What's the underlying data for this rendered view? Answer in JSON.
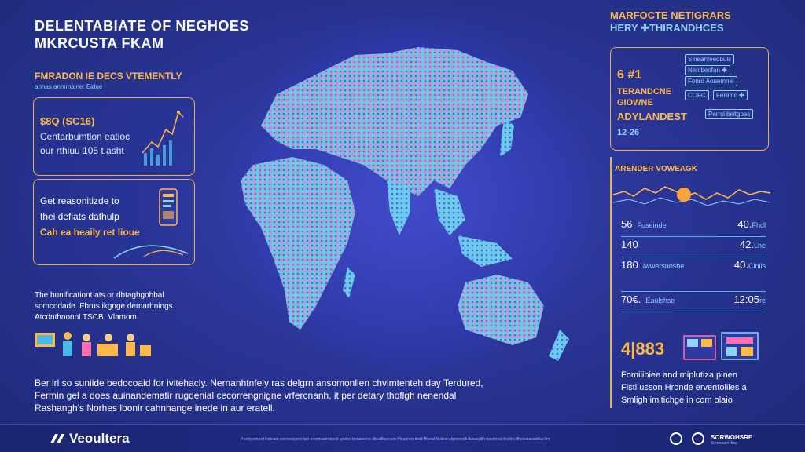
{
  "left": {
    "title_line1": "DELENTABIATE OF NEGHOES",
    "title_line2": "MKRCUSTA FKAM",
    "subtitle": "FMRADON IE DECS VTEMENTLY",
    "subtitle2": "ahhas anmmaine: Eidue",
    "card1": {
      "value": "$8Q (SC16)",
      "line1": "Centarbumtion eatioc",
      "line2": "our rthiuu 105 t.asht"
    },
    "card2": {
      "line1": "Get reasonitizde to",
      "line2": "thei defiats dathulp",
      "line3": "Cah ea heaily ret lioue"
    },
    "paragraph1": [
      "The bunificationt ats or dbtaghgohbal",
      "somcodade. Fbrus ikgnge demarhnings",
      "Atcdnthnonnl TSCB. Vlamom."
    ],
    "bottom_paragraph": [
      "Ber irl so suniide bedocoaid for ivitehacly. Nernanhtnfely ras delgrn ansomonlien chvimtenteh day Terdured,",
      "Fermin gel a does auinandematir rugdenial cecorrengnigne vrfercnanh, it per detary thoflgh nenendal",
      "Rashangh's Norhes lbonir cahnhange inede in aur eratell."
    ]
  },
  "right": {
    "title_line1": "MARFOCTE NETIGRARS",
    "title_line2": "HERY ✚THIRANDHCES",
    "card": {
      "big": "6 #1",
      "line1": "TERANDCNE",
      "line2": "GIOWNE",
      "line3": "ADYLANDEST",
      "line4": "12-26",
      "tags": [
        "Sineanfeedbuls",
        "Nenlbeofan ✚",
        "Fonrd Aouemnel",
        "COFC",
        "Ferelnc ✚",
        "Perrsl beltgbes"
      ]
    },
    "section_head": "ARENDER VOWEAGK",
    "rows": [
      {
        "left": "56",
        "left_small": "Fuseinde",
        "right": "40.",
        "right_small": "Fhdl"
      },
      {
        "left": "140",
        "left_small": "",
        "right": "42.",
        "right_small": "Lhe"
      },
      {
        "left": "180",
        "left_small": "Iwwersuosbe",
        "right": "40.",
        "right_small": "Cinlis"
      },
      {
        "left": "70€.",
        "left_small": "Eaulshse",
        "right": "12:05",
        "right_small": "re"
      }
    ],
    "big_number": "4|883",
    "paragraph": [
      "Fomilibiee and miplutiza pinen",
      "Fisti usson Hronde erventoliles a",
      "Smligh imitichge in com olaio"
    ]
  },
  "footer": {
    "brand": "Veoultera",
    "note": "Peerlynonrnd llennaid wereveiyperi funi enorteacirnoneit geeieri bnnaneine dlieatlbsenerk Pleaonee tirdd Btneal Neilion olgneneidi daiwcqilih tueeltreal thelleo Ilheloalanaidhun'lrn",
    "brand_right": "SORWOHSRE",
    "brand_right_small": "Sreeneanl fheg"
  },
  "colors": {
    "accent": "#e9b04a",
    "cyan": "#8fd3ff",
    "pink": "#ff6fb0",
    "bg": "#2a3596"
  }
}
